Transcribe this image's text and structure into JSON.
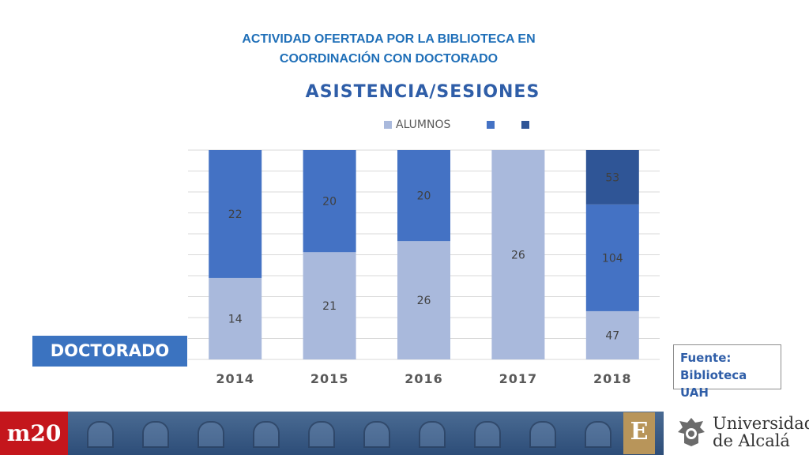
{
  "header": {
    "line1": "ACTIVIDAD OFERTADA POR LA BIBLIOTECA EN",
    "line2": "COORDINACIÓN CON DOCTORADO"
  },
  "badge": "DOCTORADO",
  "source": {
    "line1": "Fuente:",
    "line2": "Biblioteca UAH"
  },
  "footer": {
    "left_logo": "m20",
    "emblem": "E",
    "university_line1": "Universidad",
    "university_line2": "de Alcalá"
  },
  "colors": {
    "title": "#1f6fb8",
    "alumnos": "#a9b9dc",
    "series2": "#4472c4",
    "series3": "#2f5596",
    "badge": "#3b73c0"
  },
  "chart_data": {
    "type": "bar",
    "stacked": true,
    "title": "ASISTENCIA/SESIONES",
    "categories": [
      "2014",
      "2015",
      "2016",
      "2017",
      "2018"
    ],
    "series": [
      {
        "name": "ALUMNOS",
        "values": [
          14,
          21,
          26,
          26,
          47
        ],
        "color": "#a9b9dc"
      },
      {
        "name": "",
        "values": [
          22,
          20,
          20,
          null,
          104
        ],
        "color": "#4472c4"
      },
      {
        "name": "",
        "values": [
          null,
          null,
          null,
          null,
          53
        ],
        "color": "#2f5596"
      }
    ],
    "display": "100% stacked",
    "legend_position": "top",
    "grid": true
  }
}
